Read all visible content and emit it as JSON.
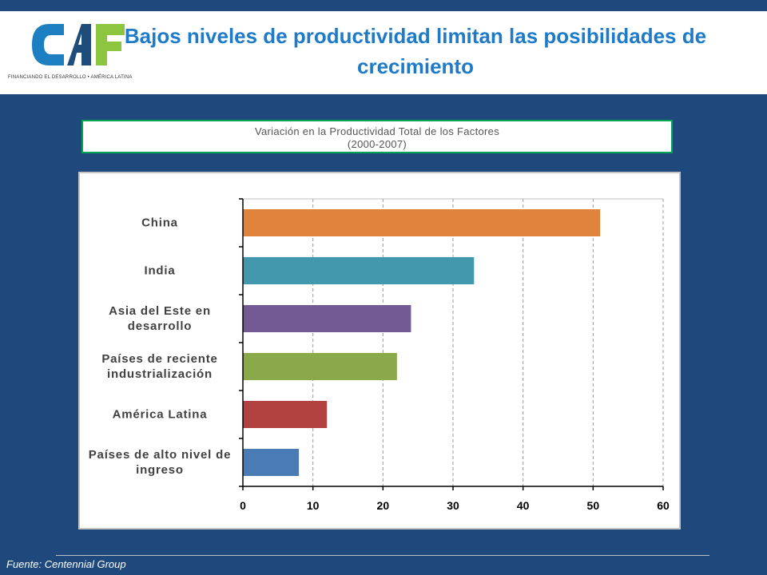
{
  "header": {
    "title": "Bajos niveles de productividad limitan las posibilidades de crecimiento",
    "logo_text": "CAF",
    "logo_tagline": "FINANCIANDO EL DESARROLLO • AMÉRICA LATINA"
  },
  "chart_heading": {
    "line1": "Variación en la Productividad Total  de los Factores",
    "line2": "(2000-2007)"
  },
  "chart_data": {
    "type": "bar",
    "orientation": "horizontal",
    "categories": [
      "China",
      "India",
      "Asia del Este en desarrollo",
      "Países de reciente industrialización",
      "América Latina",
      "Países de alto nivel de ingreso"
    ],
    "values": [
      51,
      33,
      24,
      22,
      12,
      8
    ],
    "colors": [
      "#e0843d",
      "#4398ae",
      "#735a94",
      "#8aa94b",
      "#b2423f",
      "#4a7bb5"
    ],
    "xlim": [
      0,
      60
    ],
    "xticks": [
      0,
      10,
      20,
      30,
      40,
      50,
      60
    ],
    "grid": "vertical-dashed",
    "legend": "none"
  },
  "footer": {
    "source": "Fuente: Centennial Group"
  }
}
